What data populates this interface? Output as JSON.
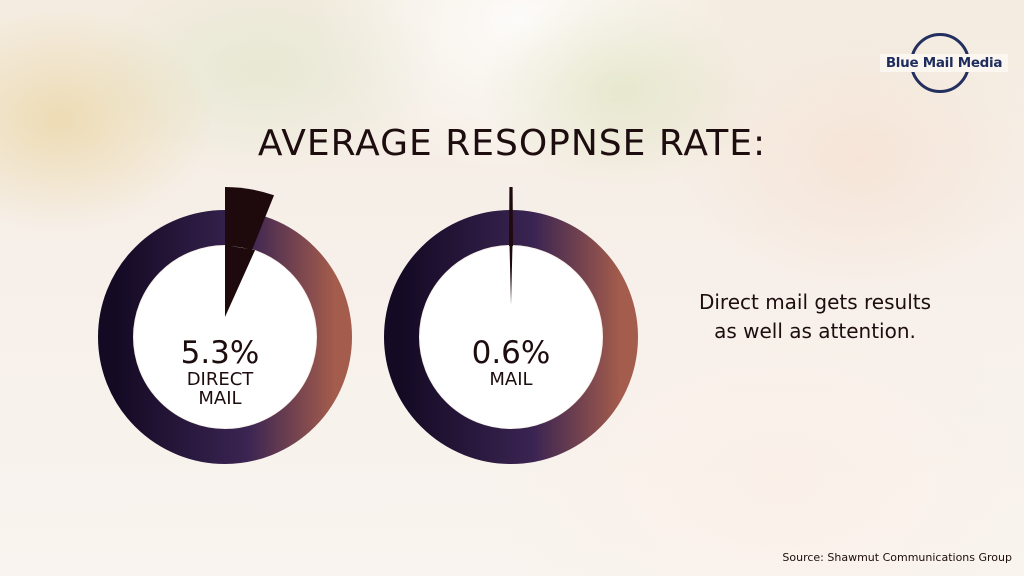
{
  "brand": {
    "logo_text": "Blue Mail Media"
  },
  "title": "AVERAGE RESOPNSE RATE:",
  "tagline": "Direct mail gets results\nas well as attention.",
  "source": "Source: Shawmut Communications Group",
  "colors": {
    "ring_start": "#140a24",
    "ring_mid": "#3a2452",
    "ring_end": "#a45c4c",
    "wedge": "#1e0a0d",
    "text": "#1e0d0f",
    "logo": "#1f2d5e"
  },
  "chart_data": [
    {
      "type": "pie",
      "slices": [
        {
          "label": "DIRECT MAIL",
          "value": 5.3
        }
      ],
      "value_label": "5.3%",
      "category_label": "DIRECT\nMAIL",
      "unit": "%"
    },
    {
      "type": "pie",
      "slices": [
        {
          "label": "MAIL",
          "value": 0.6
        }
      ],
      "value_label": "0.6%",
      "category_label": "MAIL",
      "unit": "%"
    }
  ]
}
